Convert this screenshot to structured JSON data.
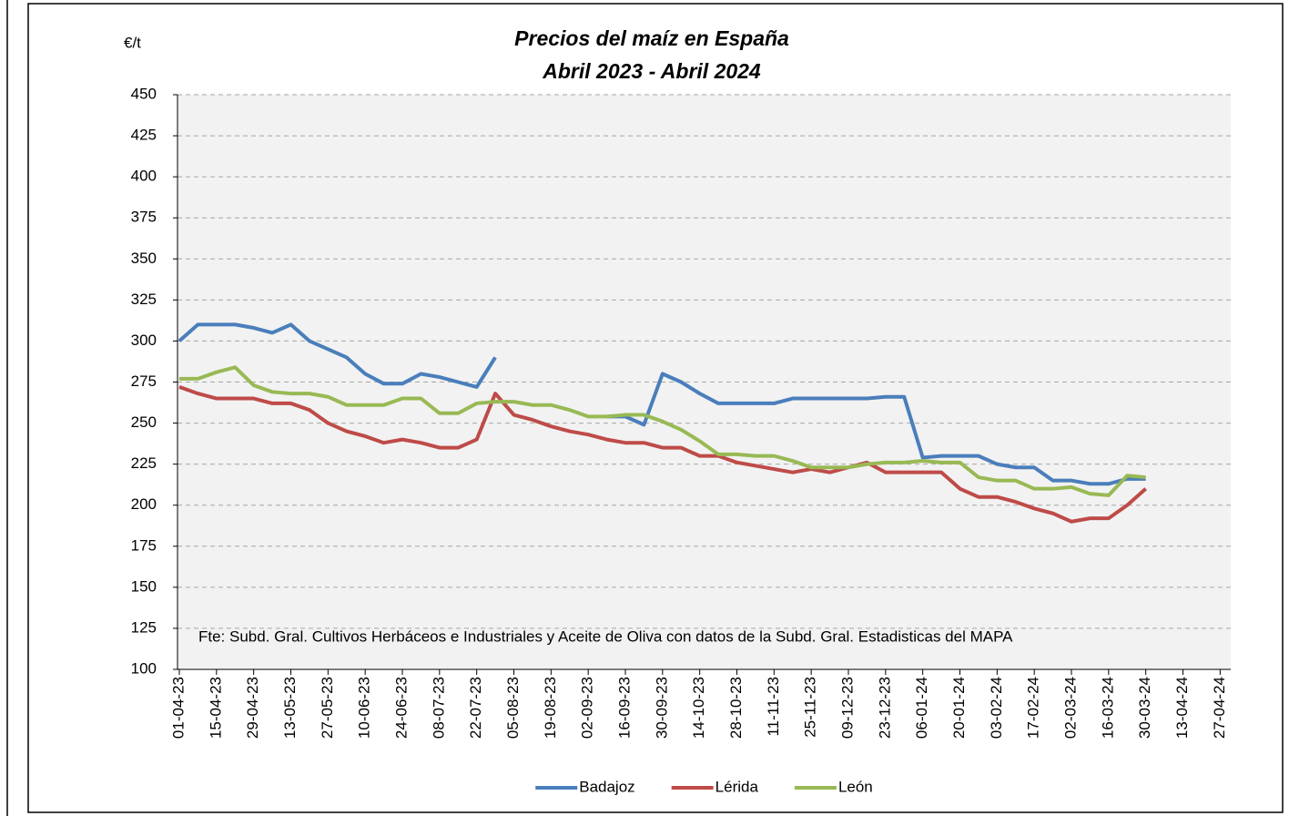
{
  "chart_data": {
    "type": "line",
    "title": "Precios del maíz en España",
    "subtitle": "Abril 2023 - Abril 2024",
    "ylabel": "€/t",
    "annotation": "Fte: Subd. Gral. Cultivos Herbáceos e Industriales y Aceite de Oliva con datos de la Subd. Gral. Estadisticas del MAPA",
    "x": [
      "01-04-23",
      "08-04-23",
      "15-04-23",
      "22-04-23",
      "29-04-23",
      "06-05-23",
      "13-05-23",
      "20-05-23",
      "27-05-23",
      "03-06-23",
      "10-06-23",
      "17-06-23",
      "24-06-23",
      "01-07-23",
      "08-07-23",
      "15-07-23",
      "22-07-23",
      "29-07-23",
      "05-08-23",
      "12-08-23",
      "19-08-23",
      "26-08-23",
      "02-09-23",
      "09-09-23",
      "16-09-23",
      "23-09-23",
      "30-09-23",
      "07-10-23",
      "14-10-23",
      "21-10-23",
      "28-10-23",
      "04-11-23",
      "11-11-23",
      "18-11-23",
      "25-11-23",
      "02-12-23",
      "09-12-23",
      "16-12-23",
      "23-12-23",
      "30-12-23",
      "06-01-24",
      "13-01-24",
      "20-01-24",
      "27-01-24",
      "03-02-24",
      "10-02-24",
      "17-02-24",
      "24-02-24",
      "02-03-24",
      "09-03-24",
      "16-03-24",
      "23-03-24",
      "30-03-24"
    ],
    "series": [
      {
        "name": "Badajoz",
        "color": "#4a7ebb",
        "values": [
          300,
          310,
          310,
          310,
          308,
          305,
          310,
          300,
          295,
          290,
          280,
          274,
          274,
          280,
          278,
          275,
          272,
          290,
          null,
          null,
          null,
          null,
          null,
          254,
          254,
          249,
          280,
          275,
          268,
          262,
          262,
          262,
          262,
          265,
          265,
          265,
          265,
          265,
          266,
          266,
          229,
          230,
          230,
          230,
          225,
          223,
          223,
          215,
          215,
          213,
          213,
          216,
          216
        ]
      },
      {
        "name": "Lérida",
        "color": "#be4b48",
        "values": [
          272,
          268,
          265,
          265,
          265,
          262,
          262,
          258,
          250,
          245,
          242,
          238,
          240,
          238,
          235,
          235,
          240,
          268,
          255,
          252,
          248,
          245,
          243,
          240,
          238,
          238,
          235,
          235,
          230,
          230,
          226,
          224,
          222,
          220,
          222,
          220,
          223,
          226,
          220,
          220,
          220,
          220,
          210,
          205,
          205,
          202,
          198,
          195,
          190,
          192,
          192,
          200,
          210
        ]
      },
      {
        "name": "León",
        "color": "#98b954",
        "values": [
          277,
          277,
          281,
          284,
          273,
          269,
          268,
          268,
          266,
          261,
          261,
          261,
          265,
          265,
          256,
          256,
          262,
          263,
          263,
          261,
          261,
          258,
          254,
          254,
          255,
          255,
          251,
          246,
          239,
          231,
          231,
          230,
          230,
          227,
          223,
          223,
          223,
          225,
          226,
          226,
          227,
          226,
          226,
          217,
          215,
          215,
          210,
          210,
          211,
          207,
          206,
          218,
          217
        ]
      }
    ],
    "xlim": [
      "01-04-23",
      "01-05-24"
    ],
    "xticks": [
      "01-04-23",
      "15-04-23",
      "29-04-23",
      "13-05-23",
      "27-05-23",
      "10-06-23",
      "24-06-23",
      "08-07-23",
      "22-07-23",
      "05-08-23",
      "19-08-23",
      "02-09-23",
      "16-09-23",
      "30-09-23",
      "14-10-23",
      "28-10-23",
      "11-11-23",
      "25-11-23",
      "09-12-23",
      "23-12-23",
      "06-01-24",
      "20-01-24",
      "03-02-24",
      "17-02-24",
      "02-03-24",
      "16-03-24",
      "30-03-24",
      "13-04-24",
      "27-04-24"
    ],
    "ylim": [
      100,
      450
    ],
    "yticks": [
      100,
      125,
      150,
      175,
      200,
      225,
      250,
      275,
      300,
      325,
      350,
      375,
      400,
      425,
      450
    ],
    "grid": true,
    "legend": "bottom"
  }
}
